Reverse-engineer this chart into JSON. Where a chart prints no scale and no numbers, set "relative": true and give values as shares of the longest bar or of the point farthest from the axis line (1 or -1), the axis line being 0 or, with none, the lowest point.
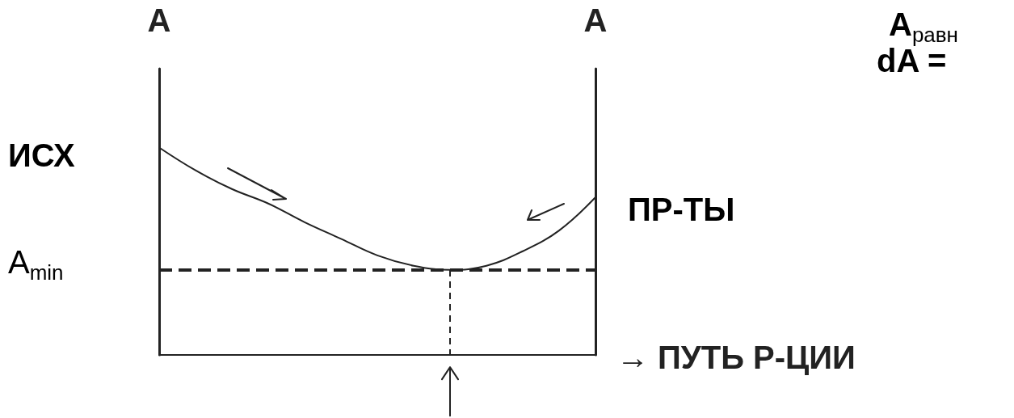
{
  "chart_data": {
    "type": "line",
    "relative": true,
    "ylabel": "A",
    "y2label": "A",
    "xlabel": "→ ПУТЬ Р-ЦИИ",
    "categories": [
      null,
      null,
      null,
      null,
      null,
      null,
      null,
      null,
      null,
      null,
      null,
      null,
      null
    ],
    "series": [
      {
        "color": "#222222",
        "values": [
          1,
          0.89,
          0.8,
          0.73,
          0.64,
          0.56,
          0.48,
          0.43,
          0.41,
          0.43,
          0.5,
          0.6,
          0.76
        ]
      }
    ],
    "ref_lines": [
      {
        "axis": "y",
        "value": 0.41,
        "label": "A$_{min}$",
        "line_style": "dashed",
        "color": "#222222"
      }
    ],
    "annotations": [
      "ИСХ",
      "ПР-ТЫ",
      "A$_{равн}$",
      "dA ="
    ],
    "grid": false
  }
}
